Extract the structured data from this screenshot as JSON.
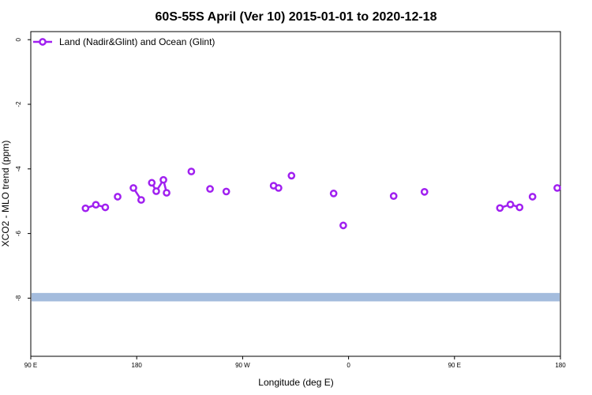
{
  "chart_data": {
    "type": "scatter",
    "title": "60S-55S April (Ver 10)   2015-01-01 to 2020-12-18",
    "xlabel": "Longitude (deg E)",
    "ylabel": "XCO2 - MLO trend (ppm)",
    "xlim": [
      90,
      450
    ],
    "ylim": [
      -9.8,
      0.25
    ],
    "x_ticks": [
      {
        "value": 90,
        "label": "90 E"
      },
      {
        "value": 180,
        "label": "180"
      },
      {
        "value": 270,
        "label": "90 W"
      },
      {
        "value": 360,
        "label": "0"
      },
      {
        "value": 450,
        "label": "90 E"
      },
      {
        "value": 540,
        "label": "180"
      }
    ],
    "y_ticks": [
      {
        "value": 0,
        "label": "0"
      },
      {
        "value": -2,
        "label": "-2"
      },
      {
        "value": -4,
        "label": "-4"
      },
      {
        "value": -6,
        "label": "-6"
      },
      {
        "value": -8,
        "label": "-8"
      }
    ],
    "x_display_max": 540,
    "legend": {
      "position": "top-left",
      "label": "Land (Nadir&Glint) and Ocean (Glint)",
      "color": "#a020f0"
    },
    "band": {
      "y_center": -7.97,
      "y_halfwidth": 0.13,
      "color": "#a4bcdd"
    },
    "series": [
      {
        "name": "Land (Nadir&Glint) and Ocean (Glint)",
        "color": "#a020f0",
        "segments": [
          {
            "points": [
              [
                136.5,
                -5.22
              ],
              [
                145.3,
                -5.11
              ],
              [
                153.3,
                -5.19
              ]
            ]
          },
          {
            "points": [
              [
                163.8,
                -4.86
              ]
            ]
          },
          {
            "points": [
              [
                177.2,
                -4.59
              ],
              [
                183.8,
                -4.96
              ]
            ]
          },
          {
            "points": [
              [
                192.8,
                -4.43
              ],
              [
                196.6,
                -4.69
              ],
              [
                202.7,
                -4.34
              ],
              [
                205.4,
                -4.74
              ]
            ]
          },
          {
            "points": [
              [
                226.4,
                -4.08
              ]
            ]
          },
          {
            "points": [
              [
                242.3,
                -4.62
              ]
            ]
          },
          {
            "points": [
              [
                256.1,
                -4.7
              ]
            ]
          },
          {
            "points": [
              [
                296.3,
                -4.52
              ],
              [
                300.5,
                -4.59
              ]
            ]
          },
          {
            "points": [
              [
                311.5,
                -4.21
              ]
            ]
          },
          {
            "points": [
              [
                347.3,
                -4.76
              ]
            ]
          },
          {
            "points": [
              [
                355.5,
                -5.75
              ]
            ]
          },
          {
            "points": [
              [
                398.3,
                -4.84
              ]
            ]
          },
          {
            "points": [
              [
                424.5,
                -4.71
              ]
            ]
          },
          {
            "points": [
              [
                488.6,
                -5.21
              ],
              [
                497.5,
                -5.1
              ],
              [
                505.3,
                -5.19
              ]
            ]
          },
          {
            "points": [
              [
                516.3,
                -4.86
              ]
            ]
          },
          {
            "points": [
              [
                537.3,
                -4.59
              ]
            ]
          }
        ]
      }
    ]
  }
}
